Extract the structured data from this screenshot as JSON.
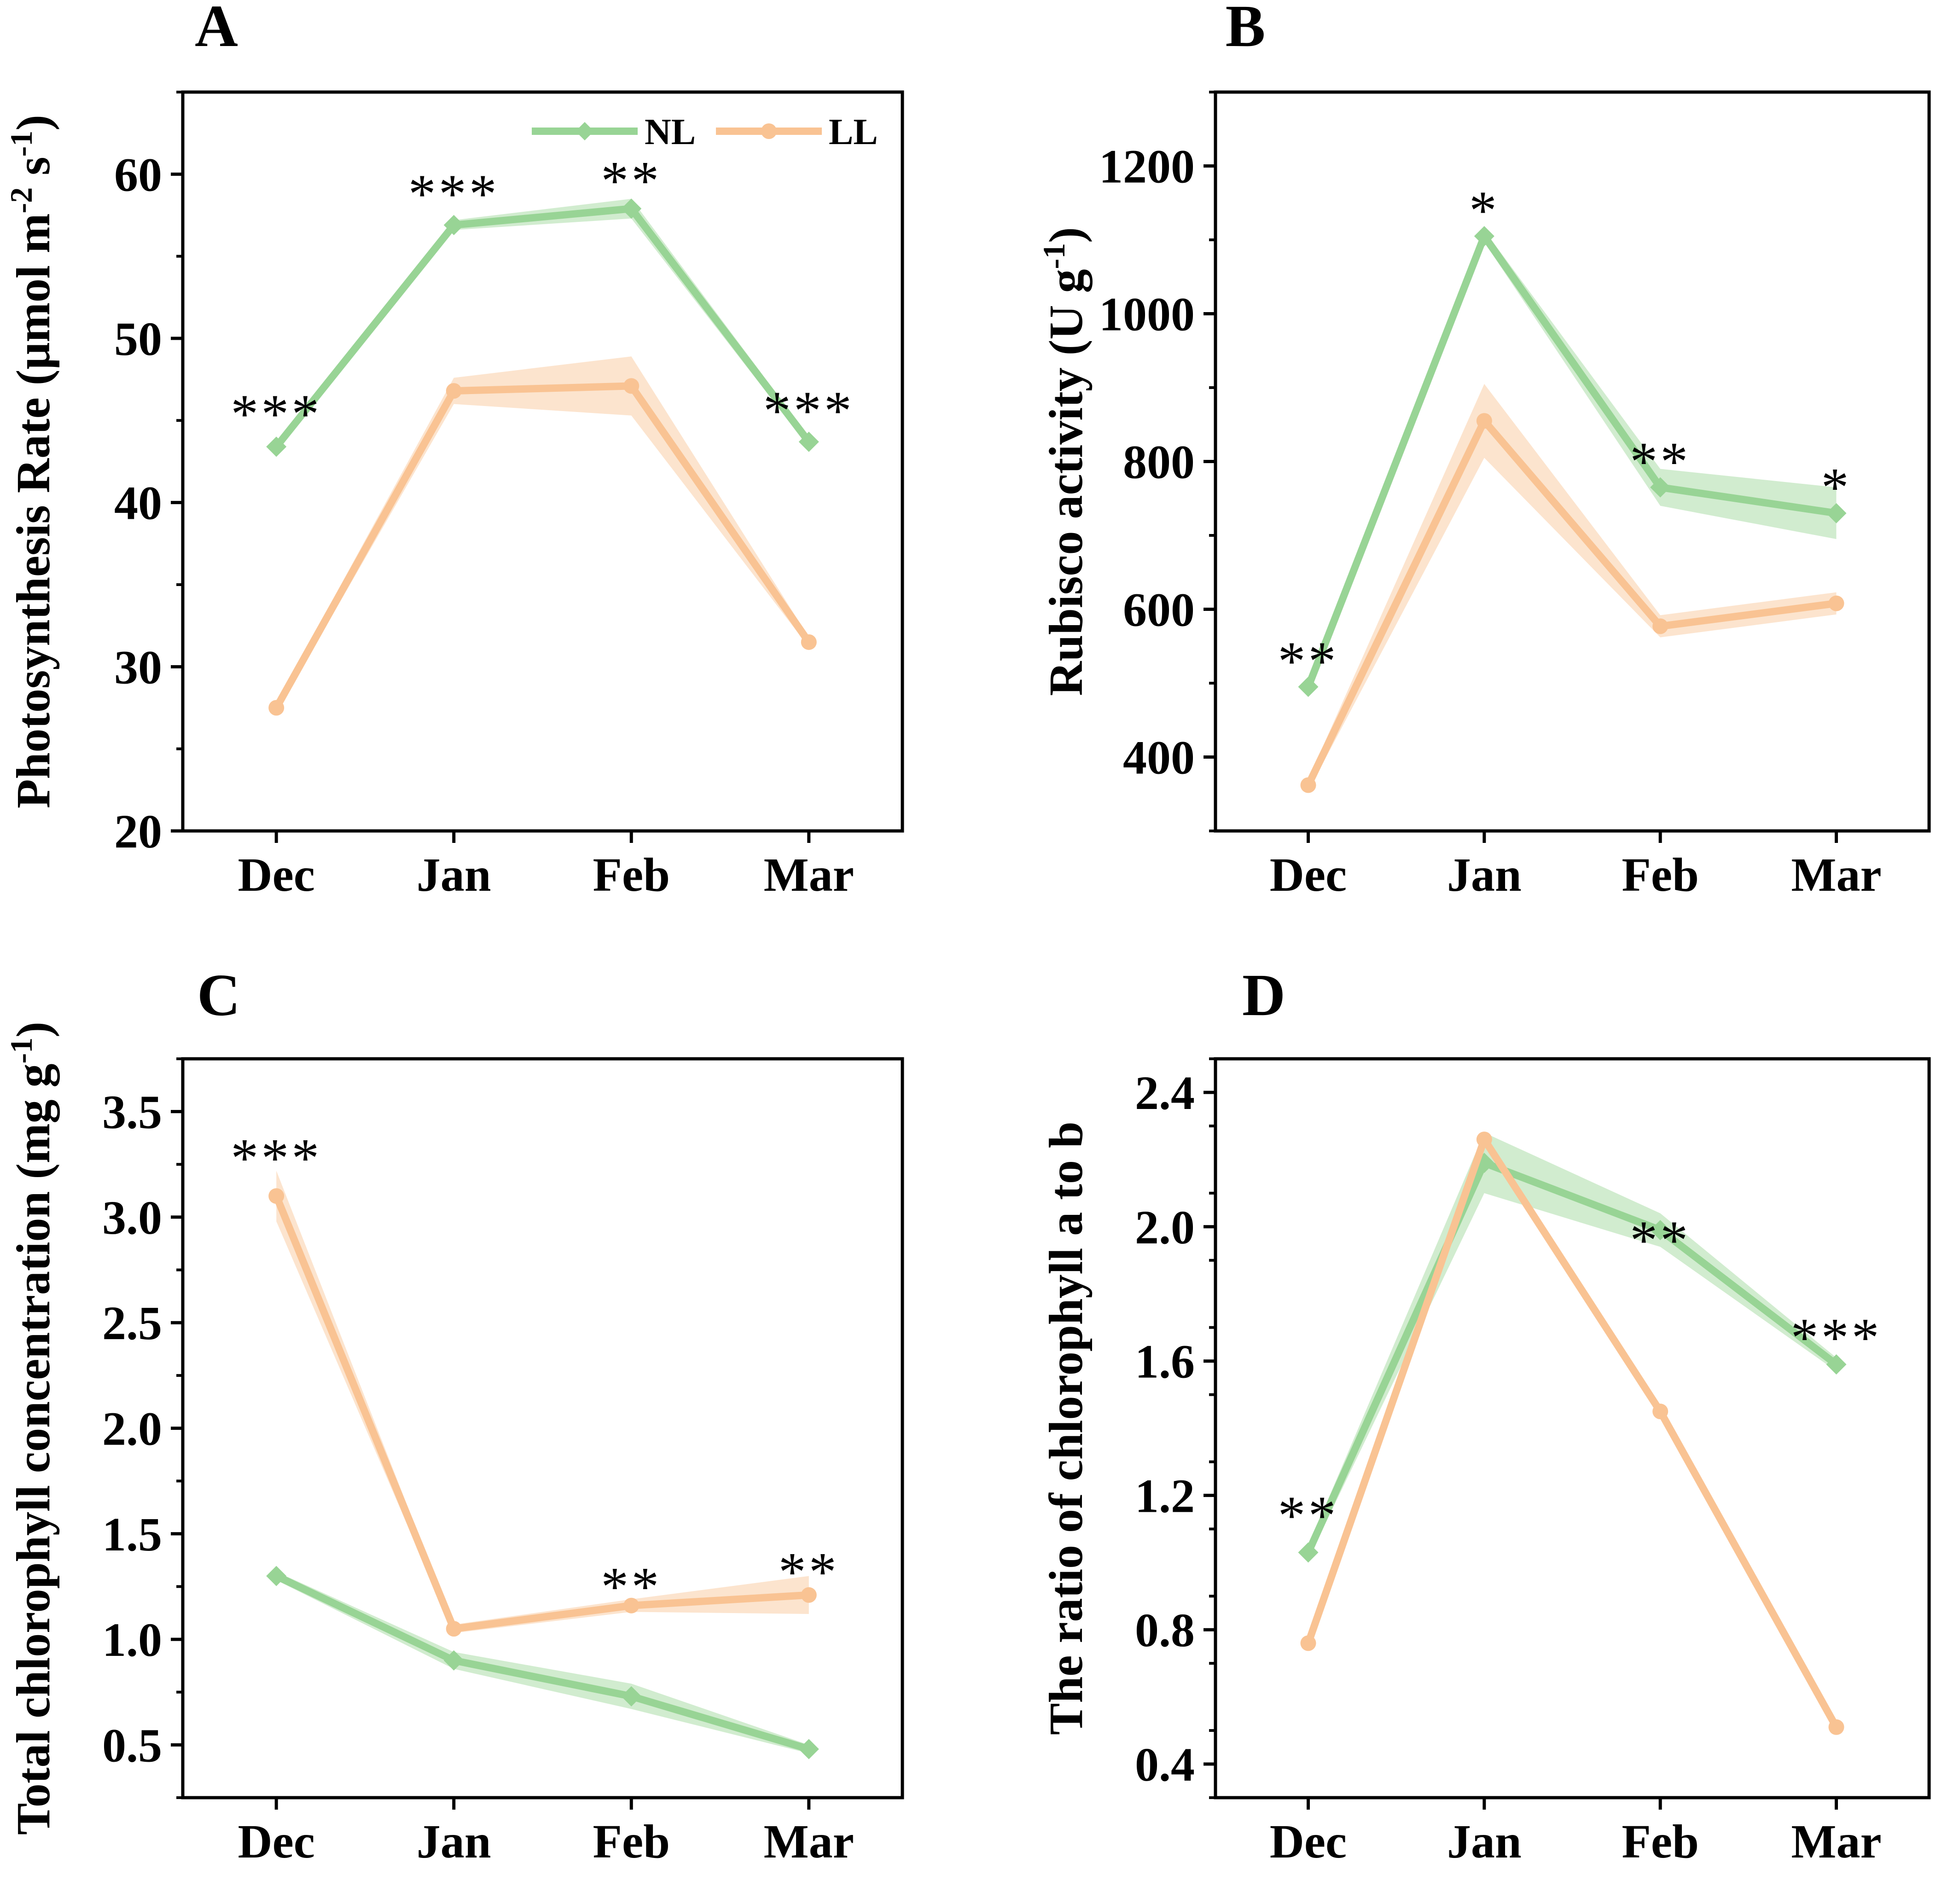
{
  "figure": {
    "legend": {
      "entries": [
        {
          "name": "NL",
          "color": "#98D495",
          "marker": "diamond"
        },
        {
          "name": "LL",
          "color": "#F9C393",
          "marker": "circle"
        }
      ]
    }
  },
  "chart_data": [
    {
      "panel": "A",
      "type": "line",
      "ylabel": "Photosynthesis Rate (μmol m",
      "ylabel_sup1": "-2",
      "ylabel_mid": " s",
      "ylabel_sup2": "-1",
      "ylabel_end": ")",
      "categories": [
        "Dec",
        "Jan",
        "Feb",
        "Mar"
      ],
      "ylim": [
        20,
        65
      ],
      "yticks": [
        20,
        30,
        40,
        50,
        60
      ],
      "ytick_labels": [
        "20",
        "30",
        "40",
        "50",
        "60"
      ],
      "minor_step": 5,
      "legend_shown": true,
      "series": [
        {
          "name": "NL",
          "values": [
            43.4,
            56.9,
            57.9,
            43.7
          ],
          "err": [
            0.3,
            0.3,
            0.6,
            0.3
          ]
        },
        {
          "name": "LL",
          "values": [
            27.5,
            46.8,
            47.1,
            31.5
          ],
          "err": [
            0.3,
            0.8,
            1.8,
            0.3
          ]
        }
      ],
      "significance": [
        {
          "category": "Dec",
          "label": "***",
          "y": 45.4
        },
        {
          "category": "Jan",
          "label": "***",
          "y": 58.8
        },
        {
          "category": "Feb",
          "label": "**",
          "y": 59.6
        },
        {
          "category": "Mar",
          "label": "***",
          "y": 45.6
        }
      ]
    },
    {
      "panel": "B",
      "type": "line",
      "ylabel": "Rubisco activity (U g",
      "ylabel_sup1": "-1",
      "ylabel_mid": "",
      "ylabel_sup2": "",
      "ylabel_end": ")",
      "categories": [
        "Dec",
        "Jan",
        "Feb",
        "Mar"
      ],
      "ylim": [
        300,
        1300
      ],
      "yticks": [
        400,
        600,
        800,
        1000,
        1200
      ],
      "ytick_labels": [
        "400",
        "600",
        "800",
        "1000",
        "1200"
      ],
      "minor_step": 100,
      "legend_shown": false,
      "series": [
        {
          "name": "NL",
          "values": [
            495,
            1105,
            765,
            730
          ],
          "err": [
            8,
            8,
            25,
            35
          ]
        },
        {
          "name": "LL",
          "values": [
            362,
            855,
            577,
            608
          ],
          "err": [
            8,
            50,
            15,
            15
          ]
        }
      ],
      "significance": [
        {
          "category": "Dec",
          "label": "**",
          "y": 530
        },
        {
          "category": "Jan",
          "label": "*",
          "y": 1140
        },
        {
          "category": "Feb",
          "label": "**",
          "y": 800
        },
        {
          "category": "Mar",
          "label": "*",
          "y": 765
        }
      ]
    },
    {
      "panel": "C",
      "type": "line",
      "ylabel": "Total chlorophyll concentration (mg g",
      "ylabel_sup1": "-1",
      "ylabel_mid": "",
      "ylabel_sup2": "",
      "ylabel_end": ")",
      "categories": [
        "Dec",
        "Jan",
        "Feb",
        "Mar"
      ],
      "ylim": [
        0.25,
        3.75
      ],
      "yticks": [
        0.5,
        1.0,
        1.5,
        2.0,
        2.5,
        3.0,
        3.5
      ],
      "ytick_labels": [
        "0.5",
        "1.0",
        "1.5",
        "2.0",
        "2.5",
        "3.0",
        "3.5"
      ],
      "minor_step": 0.25,
      "legend_shown": false,
      "series": [
        {
          "name": "NL",
          "values": [
            1.3,
            0.9,
            0.73,
            0.48
          ],
          "err": [
            0.02,
            0.04,
            0.06,
            0.02
          ]
        },
        {
          "name": "LL",
          "values": [
            3.1,
            1.05,
            1.16,
            1.21
          ],
          "err": [
            0.12,
            0.02,
            0.03,
            0.09
          ]
        }
      ],
      "significance": [
        {
          "category": "Dec",
          "label": "***",
          "y": 3.28
        },
        {
          "category": "Feb",
          "label": "**",
          "y": 1.25
        },
        {
          "category": "Mar",
          "label": "**",
          "y": 1.32
        }
      ]
    },
    {
      "panel": "D",
      "type": "line",
      "ylabel": "The ratio of chlorophyll a to b",
      "ylabel_sup1": "",
      "ylabel_mid": "",
      "ylabel_sup2": "",
      "ylabel_end": "",
      "categories": [
        "Dec",
        "Jan",
        "Feb",
        "Mar"
      ],
      "ylim": [
        0.3,
        2.5
      ],
      "yticks": [
        0.4,
        0.8,
        1.2,
        1.6,
        2.0,
        2.4
      ],
      "ytick_labels": [
        "0.4",
        "0.8",
        "1.2",
        "1.6",
        "2.0",
        "2.4"
      ],
      "minor_step": 0.2,
      "legend_shown": false,
      "series": [
        {
          "name": "NL",
          "values": [
            1.03,
            2.19,
            1.99,
            1.59
          ],
          "err": [
            0.02,
            0.09,
            0.05,
            0.02
          ]
        },
        {
          "name": "LL",
          "values": [
            0.76,
            2.26,
            1.45,
            0.51
          ],
          "err": [
            0.01,
            0.02,
            0.01,
            0.01
          ]
        }
      ],
      "significance": [
        {
          "category": "Dec",
          "label": "**",
          "y": 1.14
        },
        {
          "category": "Feb",
          "label": "**",
          "y": 1.96
        },
        {
          "category": "Mar",
          "label": "***",
          "y": 1.67
        }
      ]
    }
  ]
}
